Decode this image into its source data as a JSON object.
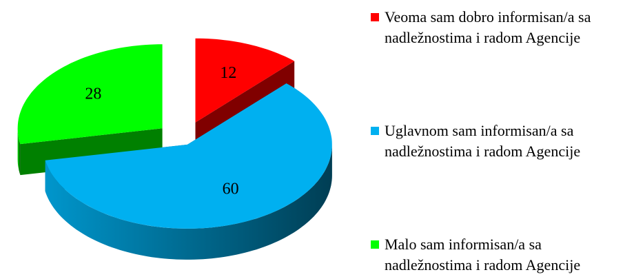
{
  "chart_data": {
    "type": "pie",
    "categories": [
      "Veoma sam dobro informisan/a sa nadležnostima i radom Agencije",
      "Uglavnom sam informisan/a sa nadležnostima i radom Agencije",
      "Malo sam informisan/a sa nadležnostima i radom Agencije"
    ],
    "values": [
      12,
      60,
      28
    ],
    "colors": [
      "#ff0000",
      "#00b0f0",
      "#00ff00"
    ],
    "legend": "right"
  }
}
